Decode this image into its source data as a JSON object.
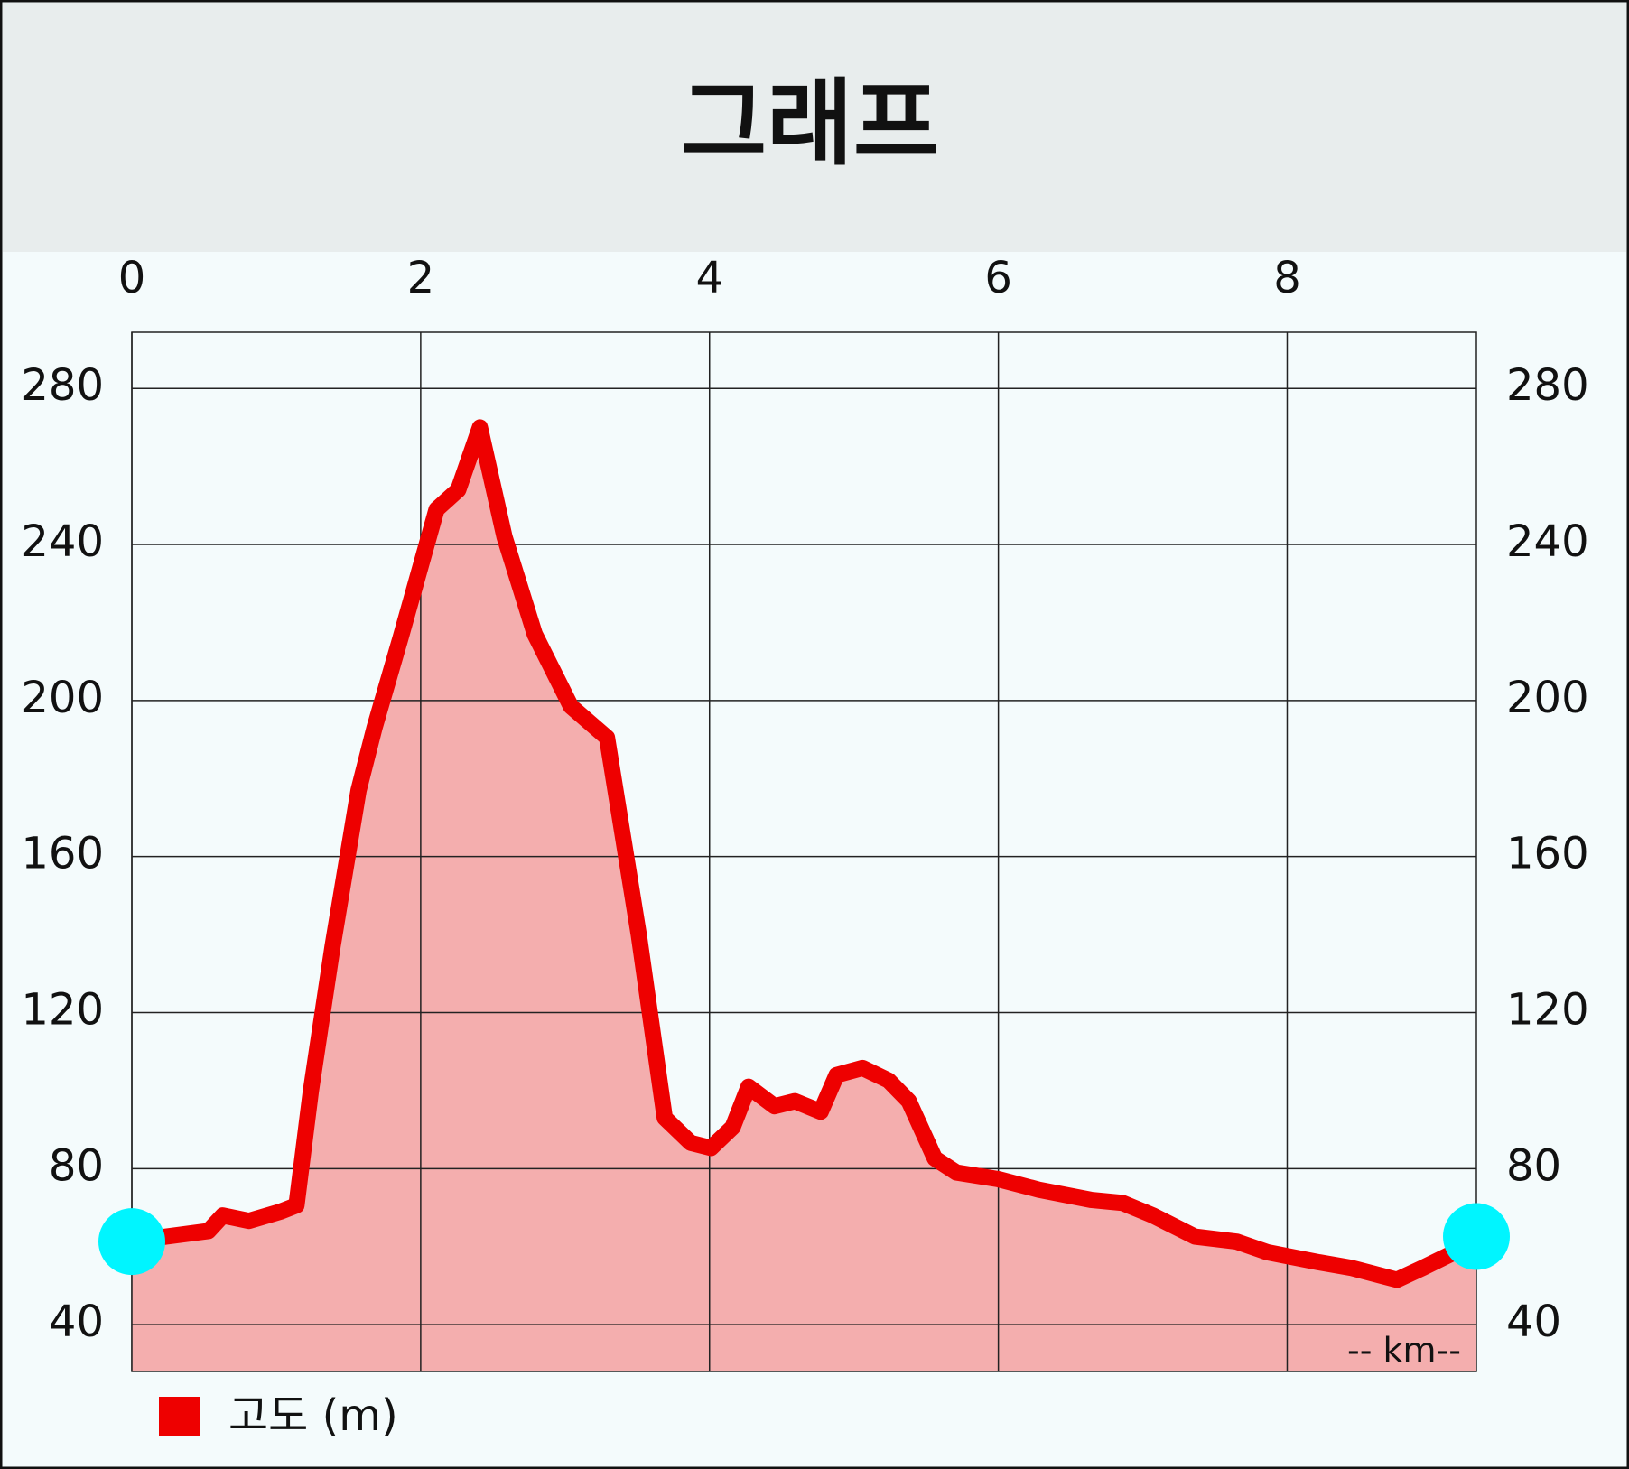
{
  "chart_data": {
    "type": "area",
    "title": "그래프",
    "x": [
      0,
      0.24,
      0.53,
      0.63,
      0.81,
      1.03,
      1.14,
      1.24,
      1.39,
      1.57,
      1.68,
      1.86,
      2.11,
      2.26,
      2.41,
      2.58,
      2.79,
      3.04,
      3.29,
      3.51,
      3.69,
      3.87,
      4.01,
      4.16,
      4.27,
      4.45,
      4.59,
      4.77,
      4.88,
      5.06,
      5.24,
      5.38,
      5.56,
      5.71,
      6.0,
      6.28,
      6.64,
      6.86,
      7.07,
      7.36,
      7.65,
      7.86,
      8.22,
      8.44,
      8.76,
      8.94,
      9.16,
      9.31
    ],
    "series": [
      {
        "name": "고도 (m)",
        "color": "#ee0000",
        "fill": "#f4aeae",
        "values": [
          61.3,
          62.6,
          64,
          68,
          66.6,
          69,
          70.6,
          100,
          137,
          177,
          193,
          216,
          249,
          254,
          270,
          242,
          217,
          198.5,
          190.5,
          140,
          93,
          86.6,
          85.3,
          90.6,
          101,
          96,
          97.3,
          94.6,
          104,
          105.8,
          102.6,
          97.3,
          82.6,
          79,
          77.3,
          74.6,
          72,
          71.2,
          68,
          62.6,
          61.3,
          58.6,
          56,
          54.6,
          51.5,
          54.6,
          58.6,
          62.6
        ]
      }
    ],
    "xlim": [
      0,
      9.31
    ],
    "xticks": [
      0,
      2,
      4,
      6,
      8
    ],
    "ylim": [
      28,
      294.4
    ],
    "yticks": [
      40,
      80,
      120,
      160,
      200,
      240,
      280
    ],
    "y2lim": [
      28,
      294.4
    ],
    "y2ticks": [
      40,
      80,
      120,
      160,
      200,
      240,
      280
    ],
    "x_label": "-- km--",
    "grid": true,
    "endpoint_marker_color": "#00f5ff",
    "legend": "bottom-left"
  }
}
